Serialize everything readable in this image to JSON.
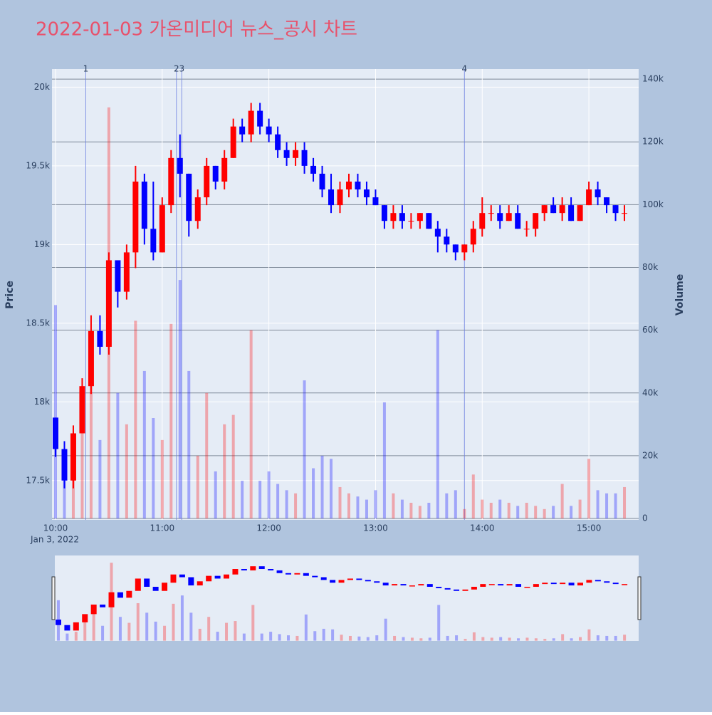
{
  "chart_data": {
    "type": "candlestick",
    "title": "2022-01-03 가온미디어 뉴스_공시 차트",
    "y_label": "Price",
    "y2_label": "Volume",
    "x_date_label": "Jan 3, 2022",
    "increasing_color": "#ff0000",
    "decreasing_color": "#0000ff",
    "background": "#b0c4de",
    "plot_background": "#e5ecf6",
    "title_color": "#e8516b",
    "x": [
      "10:00",
      "10:05",
      "10:10",
      "10:15",
      "10:20",
      "10:25",
      "10:30",
      "10:35",
      "10:40",
      "10:45",
      "10:50",
      "10:55",
      "11:00",
      "11:05",
      "11:10",
      "11:15",
      "11:20",
      "11:25",
      "11:30",
      "11:35",
      "11:40",
      "11:45",
      "11:50",
      "11:55",
      "12:00",
      "12:05",
      "12:10",
      "12:15",
      "12:20",
      "12:25",
      "12:30",
      "12:35",
      "12:40",
      "12:45",
      "12:50",
      "12:55",
      "13:00",
      "13:05",
      "13:10",
      "13:15",
      "13:20",
      "13:25",
      "13:30",
      "13:35",
      "13:40",
      "13:45",
      "13:50",
      "13:55",
      "14:00",
      "14:05",
      "14:10",
      "14:15",
      "14:20",
      "14:25",
      "14:30",
      "14:35",
      "14:40",
      "14:45",
      "14:50",
      "14:55",
      "15:00",
      "15:05",
      "15:10",
      "15:15",
      "15:20"
    ],
    "open": [
      17900,
      17700,
      17500,
      17800,
      18100,
      18450,
      18350,
      18900,
      18700,
      18950,
      19400,
      19100,
      18950,
      19250,
      19550,
      19450,
      19150,
      19300,
      19500,
      19400,
      19550,
      19750,
      19700,
      19850,
      19750,
      19700,
      19600,
      19550,
      19600,
      19500,
      19450,
      19350,
      19250,
      19350,
      19400,
      19350,
      19300,
      19250,
      19150,
      19200,
      19150,
      19150,
      19200,
      19100,
      19050,
      19000,
      18950,
      19000,
      19100,
      19200,
      19200,
      19150,
      19200,
      19100,
      19100,
      19200,
      19250,
      19200,
      19250,
      19150,
      19250,
      19350,
      19300,
      19250,
      19200
    ],
    "high": [
      17900,
      17750,
      17850,
      18150,
      18550,
      18550,
      18950,
      18900,
      19000,
      19500,
      19450,
      19400,
      19300,
      19600,
      19700,
      19450,
      19350,
      19550,
      19500,
      19600,
      19800,
      19800,
      19900,
      19900,
      19800,
      19750,
      19650,
      19650,
      19650,
      19550,
      19500,
      19450,
      19400,
      19450,
      19450,
      19400,
      19350,
      19250,
      19250,
      19250,
      19200,
      19200,
      19200,
      19150,
      19100,
      19000,
      19000,
      19150,
      19300,
      19250,
      19250,
      19250,
      19250,
      19150,
      19200,
      19250,
      19300,
      19300,
      19300,
      19250,
      19400,
      19400,
      19300,
      19250,
      19250
    ],
    "low": [
      17650,
      17450,
      17450,
      17800,
      18050,
      18300,
      18300,
      18600,
      18650,
      18850,
      19000,
      18900,
      18950,
      19200,
      19300,
      19050,
      19100,
      19250,
      19350,
      19350,
      19550,
      19650,
      19650,
      19700,
      19650,
      19550,
      19500,
      19500,
      19450,
      19400,
      19300,
      19200,
      19200,
      19300,
      19300,
      19250,
      19250,
      19100,
      19100,
      19100,
      19100,
      19100,
      19100,
      18950,
      18950,
      18900,
      18900,
      18950,
      19050,
      19150,
      19100,
      19150,
      19100,
      19050,
      19050,
      19150,
      19200,
      19150,
      19150,
      19150,
      19250,
      19250,
      19200,
      19150,
      19150
    ],
    "close": [
      17700,
      17500,
      17800,
      18100,
      18450,
      18350,
      18900,
      18700,
      18950,
      19400,
      19100,
      18950,
      19250,
      19550,
      19450,
      19150,
      19300,
      19500,
      19400,
      19550,
      19750,
      19700,
      19850,
      19750,
      19700,
      19600,
      19550,
      19600,
      19500,
      19450,
      19350,
      19250,
      19350,
      19400,
      19350,
      19300,
      19250,
      19150,
      19200,
      19150,
      19150,
      19200,
      19100,
      19050,
      19000,
      18950,
      19000,
      19100,
      19200,
      19200,
      19150,
      19200,
      19100,
      19100,
      19200,
      19250,
      19200,
      19250,
      19150,
      19250,
      19350,
      19300,
      19250,
      19200,
      19200
    ],
    "volume": [
      68000,
      12000,
      15000,
      36000,
      55000,
      25000,
      131000,
      40000,
      30000,
      63000,
      47000,
      32000,
      25000,
      62000,
      76000,
      47000,
      20000,
      40000,
      15000,
      30000,
      33000,
      12000,
      60000,
      12000,
      15000,
      11000,
      9000,
      8000,
      44000,
      16000,
      20000,
      19000,
      10000,
      8000,
      7000,
      6000,
      9000,
      37000,
      8000,
      6000,
      5000,
      4000,
      5000,
      60000,
      8000,
      9000,
      3000,
      14000,
      6000,
      5000,
      6000,
      5000,
      4000,
      5000,
      4000,
      3000,
      4000,
      11000,
      4000,
      6000,
      19000,
      9000,
      8000,
      8000,
      10000
    ],
    "ylim": [
      17250,
      20115
    ],
    "yticks": [
      {
        "value": 17500,
        "label": "17.5k"
      },
      {
        "value": 18000,
        "label": "18k"
      },
      {
        "value": 18500,
        "label": "18.5k"
      },
      {
        "value": 19000,
        "label": "19k"
      },
      {
        "value": 19500,
        "label": "19.5k"
      },
      {
        "value": 20000,
        "label": "20k"
      }
    ],
    "y2lim": [
      -450,
      143200
    ],
    "y2ticks": [
      0,
      {
        "value": 20000,
        "label": "20k"
      },
      {
        "value": 40000,
        "label": "40k"
      },
      {
        "value": 60000,
        "label": "60k"
      },
      {
        "value": 80000,
        "label": "80k"
      },
      {
        "value": 100000,
        "label": "100k"
      },
      {
        "value": 120000,
        "label": "120k"
      },
      {
        "value": 140000,
        "label": "140k"
      }
    ],
    "xticks": [
      "10:00",
      "11:00",
      "12:00",
      "13:00",
      "14:00",
      "15:00"
    ],
    "xlim": [
      "09:58",
      "15:28"
    ],
    "annotations": [
      {
        "x": "10:17",
        "text": "1"
      },
      {
        "x": "11:08",
        "text": "2"
      },
      {
        "x": "11:11",
        "text": "3"
      },
      {
        "x": "13:50",
        "text": "4"
      }
    ]
  }
}
